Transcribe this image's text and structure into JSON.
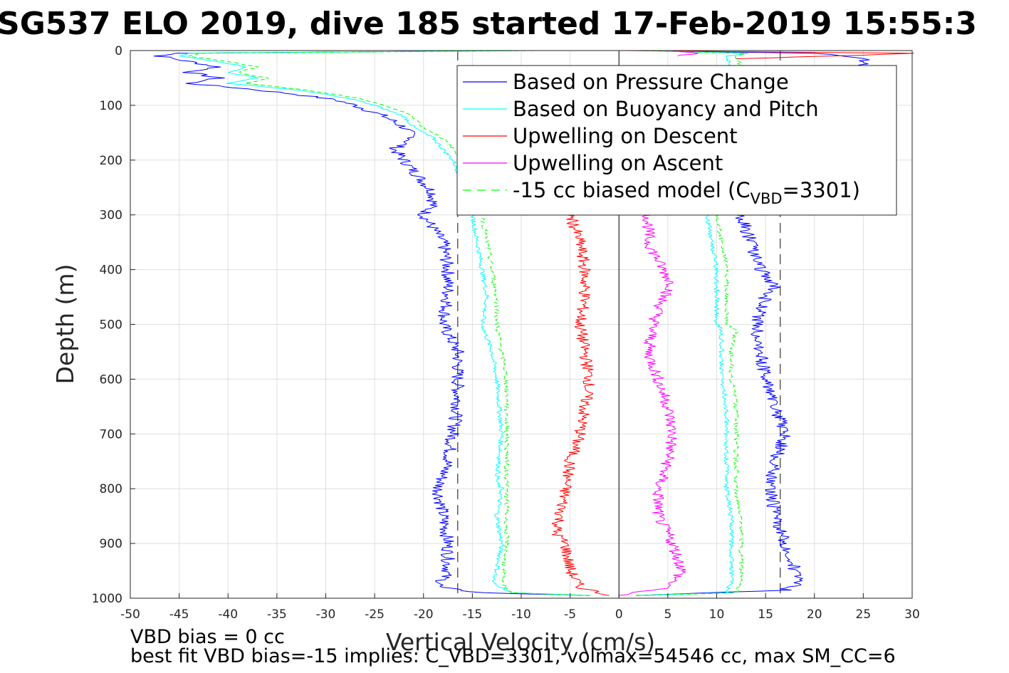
{
  "chart_data": {
    "type": "line",
    "title": "SG537 ELO 2019, dive 185 started 17-Feb-2019 15:55:3",
    "xlabel": "Vertical Velocity (cm/s)",
    "ylabel": "Depth (m)",
    "xlim": [
      -50,
      30
    ],
    "ylim": [
      0,
      1000
    ],
    "y_reversed": true,
    "grid": true,
    "legend_position": "top-right",
    "x_ticks": [
      "-50",
      "-45",
      "-40",
      "-35",
      "-30",
      "-25",
      "-20",
      "-15",
      "-10",
      "-5",
      "0",
      "5",
      "10",
      "15",
      "20",
      "25",
      "30"
    ],
    "y_ticks": [
      "0",
      "100",
      "200",
      "300",
      "400",
      "500",
      "600",
      "700",
      "800",
      "900",
      "1000"
    ],
    "colors": {
      "pressure": "#0000ff",
      "buoyancy": "#00ffff",
      "up_descent": "#ff0000",
      "up_ascent": "#ff00ff",
      "model": "#00ff00",
      "zero_line": "#000000",
      "ref_dashed": "#444444"
    },
    "reference_lines": {
      "x_zero": 0,
      "dashed_x": [
        -16.5,
        16.5
      ]
    },
    "legend": [
      {
        "key": "pressure",
        "label": "Based on Pressure Change",
        "style": "solid"
      },
      {
        "key": "buoyancy",
        "label": "Based on Buoyancy and Pitch",
        "style": "solid"
      },
      {
        "key": "up_descent",
        "label": "Upwelling on Descent",
        "style": "solid"
      },
      {
        "key": "up_ascent",
        "label": "Upwelling on Ascent",
        "style": "solid"
      },
      {
        "key": "model",
        "label_prefix": "-15 cc biased model (C",
        "label_sub": "VBD",
        "label_suffix": "=3301)",
        "style": "dashed"
      }
    ],
    "series": [
      {
        "key": "pressure_descent",
        "legend_key": "pressure",
        "color": "#0000ff",
        "depth": [
          0,
          5,
          10,
          20,
          30,
          40,
          50,
          60,
          70,
          80,
          90,
          100,
          120,
          140,
          160,
          180,
          200,
          220,
          240,
          260,
          280,
          300,
          350,
          400,
          450,
          500,
          550,
          600,
          650,
          700,
          750,
          800,
          850,
          900,
          950,
          980,
          990,
          995
        ],
        "velocity": [
          -10,
          -45,
          -47,
          -44,
          -41,
          -44,
          -41,
          -44,
          -38,
          -33,
          -29,
          -27,
          -24,
          -22,
          -21,
          -23,
          -22,
          -21,
          -20,
          -19,
          -19,
          -20,
          -18,
          -17.5,
          -17.5,
          -18,
          -16.5,
          -16.5,
          -16.5,
          -17,
          -17.5,
          -18.5,
          -18,
          -17.5,
          -17.5,
          -18.5,
          -14,
          -3
        ]
      },
      {
        "key": "pressure_ascent",
        "legend_key": "pressure",
        "color": "#0000ff",
        "depth": [
          995,
          985,
          970,
          950,
          920,
          900,
          850,
          800,
          750,
          700,
          650,
          600,
          550,
          500,
          450,
          430,
          400,
          350,
          300,
          280,
          250,
          200,
          150,
          100,
          50,
          30,
          15,
          5,
          0
        ],
        "velocity": [
          2,
          17,
          18.5,
          18,
          17.5,
          17,
          16,
          15.5,
          16,
          17,
          16,
          15,
          14.5,
          14,
          15,
          16,
          14.5,
          13.5,
          12.5,
          13,
          13,
          14,
          14,
          14,
          14,
          25,
          25,
          20,
          2
        ]
      },
      {
        "key": "buoyancy_descent",
        "legend_key": "buoyancy",
        "color": "#00ffff",
        "depth": [
          0,
          5,
          10,
          20,
          30,
          40,
          50,
          60,
          70,
          80,
          90,
          100,
          120,
          140,
          160,
          180,
          200,
          220,
          240,
          260,
          300,
          350,
          400,
          450,
          500,
          550,
          600,
          700,
          790,
          800,
          850,
          900,
          950,
          970,
          990,
          995
        ],
        "velocity": [
          -10,
          -44,
          -45,
          -41,
          -38,
          -40,
          -37,
          -40,
          -34,
          -30,
          -27,
          -25,
          -22,
          -21,
          -19,
          -18,
          -17,
          -16.5,
          -16,
          -15.5,
          -15,
          -14.5,
          -14,
          -13.5,
          -14,
          -13,
          -12.5,
          -12,
          -12.5,
          -12,
          -12.5,
          -12,
          -12.5,
          -13,
          -11,
          -3
        ]
      },
      {
        "key": "buoyancy_ascent",
        "legend_key": "buoyancy",
        "color": "#00ffff",
        "depth": [
          995,
          990,
          970,
          950,
          900,
          850,
          800,
          750,
          700,
          650,
          600,
          550,
          510,
          500,
          450,
          400,
          350,
          300,
          250,
          200,
          150,
          100,
          50,
          10,
          5,
          0
        ],
        "velocity": [
          2,
          11,
          11.5,
          11.5,
          11.5,
          11.5,
          11,
          11,
          11,
          11,
          10.5,
          10.5,
          10.5,
          10,
          10,
          10,
          9.5,
          9,
          9.5,
          10,
          11,
          11.5,
          12,
          11,
          13,
          2
        ]
      },
      {
        "key": "up_descent",
        "legend_key": "up_descent",
        "color": "#ff0000",
        "depth": [
          300,
          350,
          400,
          450,
          500,
          550,
          600,
          650,
          700,
          750,
          800,
          850,
          880,
          900,
          950,
          980,
          995
        ],
        "velocity": [
          -5,
          -4,
          -3.5,
          -3.5,
          -4,
          -3.5,
          -3,
          -3.5,
          -4,
          -5,
          -5.5,
          -6,
          -6.5,
          -5.5,
          -5,
          -4,
          -1
        ]
      },
      {
        "key": "up_descent_top",
        "legend_key": "up_descent",
        "color": "#ff0000",
        "depth": [
          0,
          5,
          10,
          15
        ],
        "velocity": [
          1,
          30,
          22,
          12
        ]
      },
      {
        "key": "up_ascent",
        "legend_key": "up_ascent",
        "color": "#ff00ff",
        "depth": [
          300,
          350,
          400,
          430,
          450,
          500,
          550,
          600,
          650,
          700,
          750,
          800,
          850,
          900,
          950,
          980,
          995
        ],
        "velocity": [
          3,
          3,
          4.5,
          5.5,
          4.5,
          3.5,
          3,
          4,
          5,
          5.5,
          5,
          4,
          4,
          5.5,
          6.5,
          5,
          0
        ]
      },
      {
        "key": "up_ascent_top",
        "legend_key": "up_ascent",
        "color": "#ff00ff",
        "depth": [
          0,
          5,
          10
        ],
        "velocity": [
          4,
          8,
          6
        ]
      },
      {
        "key": "model_descent",
        "legend_key": "model",
        "color": "#00ff00",
        "dashed": true,
        "depth": [
          0,
          5,
          10,
          20,
          30,
          40,
          50,
          60,
          70,
          80,
          90,
          100,
          120,
          140,
          160,
          180,
          200,
          220,
          240,
          260,
          300,
          350,
          400,
          450,
          500,
          550,
          600,
          700,
          800,
          900,
          970,
          990,
          995
        ],
        "velocity": [
          -8,
          -43,
          -44,
          -40,
          -37,
          -39,
          -36,
          -38,
          -33,
          -29,
          -26,
          -24,
          -21,
          -20,
          -18,
          -17,
          -16,
          -15.5,
          -15,
          -14.5,
          -14,
          -13.5,
          -13,
          -12.5,
          -12.5,
          -12,
          -11.5,
          -11.5,
          -11.5,
          -11.5,
          -12,
          -11,
          -3
        ]
      },
      {
        "key": "model_ascent",
        "legend_key": "model",
        "color": "#00ff00",
        "dashed": true,
        "depth": [
          995,
          990,
          970,
          950,
          900,
          850,
          800,
          750,
          700,
          650,
          600,
          550,
          510,
          500,
          450,
          400,
          350,
          300,
          250,
          200,
          150,
          100,
          50,
          10,
          5,
          0
        ],
        "velocity": [
          2,
          12,
          12.5,
          12.5,
          12.5,
          12.5,
          12,
          12,
          12,
          12,
          11.5,
          11.5,
          12,
          11,
          11,
          11,
          10.5,
          10,
          10.5,
          11,
          12,
          12.5,
          13,
          12,
          13,
          2
        ]
      }
    ]
  },
  "footer": {
    "line1": "VBD bias = 0 cc",
    "line2": "best fit VBD bias=-15 implies: C_VBD=3301, volmax=54546 cc, max SM_CC=6"
  }
}
